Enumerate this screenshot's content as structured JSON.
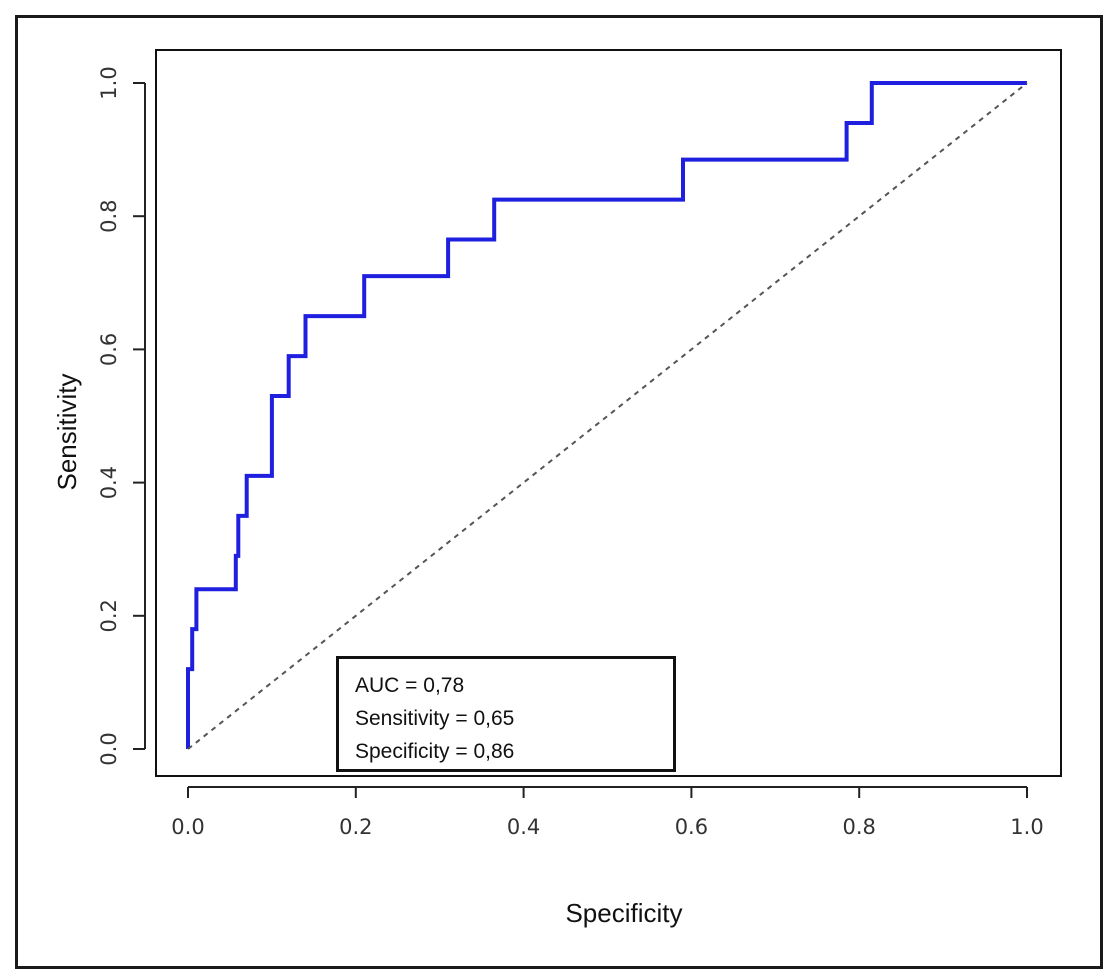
{
  "chart_data": {
    "type": "line",
    "xlabel": "Specificity",
    "ylabel": "Sensitivity",
    "xlim": [
      0,
      1
    ],
    "ylim": [
      0,
      1
    ],
    "x_ticks": [
      "0.0",
      "0.2",
      "0.4",
      "0.6",
      "0.8",
      "1.0"
    ],
    "y_ticks": [
      "0.0",
      "0.2",
      "0.4",
      "0.6",
      "0.8",
      "1.0"
    ],
    "grid": false,
    "series": [
      {
        "color": "#1f1fe0",
        "style": "step",
        "x": [
          0.0,
          0.0,
          0.005,
          0.005,
          0.01,
          0.01,
          0.057,
          0.057,
          0.06,
          0.06,
          0.07,
          0.07,
          0.1,
          0.1,
          0.12,
          0.12,
          0.14,
          0.14,
          0.21,
          0.21,
          0.31,
          0.31,
          0.365,
          0.365,
          0.59,
          0.59,
          0.785,
          0.785,
          0.815,
          0.815,
          1.0
        ],
        "y": [
          0.0,
          0.12,
          0.12,
          0.18,
          0.18,
          0.24,
          0.24,
          0.29,
          0.29,
          0.35,
          0.35,
          0.41,
          0.41,
          0.53,
          0.53,
          0.59,
          0.59,
          0.65,
          0.65,
          0.71,
          0.71,
          0.765,
          0.765,
          0.825,
          0.825,
          0.885,
          0.885,
          0.94,
          0.94,
          1.0,
          1.0
        ]
      },
      {
        "color": "#555555",
        "style": "dashed",
        "x": [
          0,
          1
        ],
        "y": [
          0,
          1
        ]
      }
    ],
    "annotations": [
      "AUC = 0,78",
      "Sensitivity = 0,65",
      "Specificity = 0,86"
    ]
  }
}
